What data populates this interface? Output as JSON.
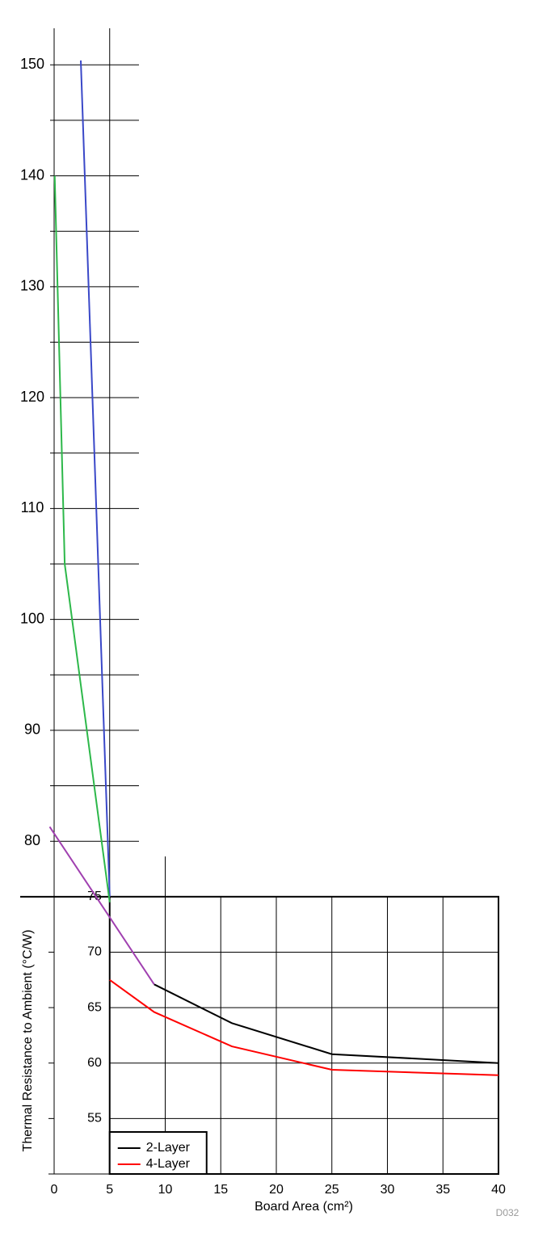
{
  "chart_data": {
    "type": "line",
    "x_label": "Board Area (cm²)",
    "y_label": "Thermal Resistance to Ambient (°C/W)",
    "note": "D032",
    "xlim": [
      0,
      40
    ],
    "ylim": [
      50,
      153.3
    ],
    "xticks": [
      0,
      5,
      10,
      15,
      20,
      25,
      30,
      35,
      40
    ],
    "yticks": [
      55,
      60,
      65,
      70,
      75,
      80,
      90,
      100,
      110,
      120,
      130,
      140,
      150
    ],
    "grid": true,
    "legend": "lower left",
    "series": [
      {
        "name": "2-Layer",
        "color": "#000000",
        "x": [
          9,
          16,
          25,
          40
        ],
        "values": [
          67.1,
          63.6,
          60.8,
          60.0
        ]
      },
      {
        "name": "4-Layer",
        "color": "#ff0000",
        "x": [
          5,
          9,
          16,
          25,
          40
        ],
        "values": [
          67.5,
          64.6,
          61.5,
          59.4,
          58.9
        ]
      },
      {
        "color": "#3a48c8",
        "x": [
          2.4,
          5
        ],
        "values": [
          150.4,
          75
        ]
      },
      {
        "color": "#2db84a",
        "x": [
          0.05,
          0.95,
          5
        ],
        "values": [
          140,
          105,
          74.5
        ]
      },
      {
        "color": "#a040b0",
        "x": [
          -0.4,
          9
        ],
        "values": [
          81.3,
          67.1
        ]
      }
    ]
  }
}
